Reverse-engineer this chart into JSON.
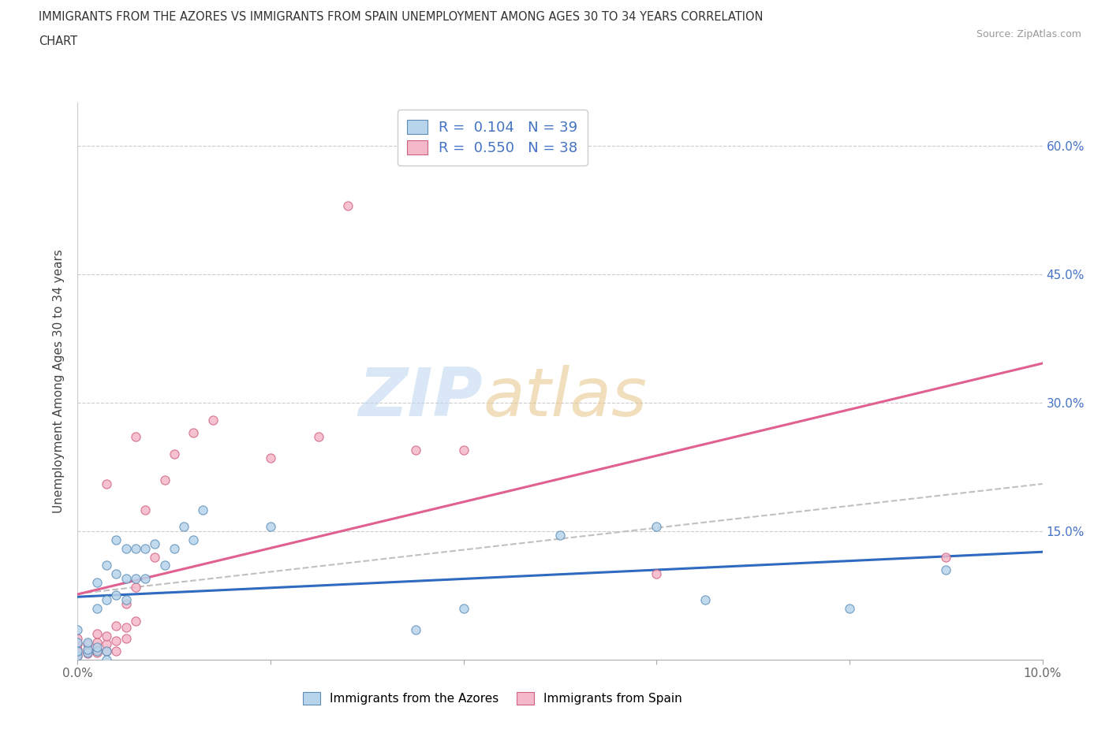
{
  "title_line1": "IMMIGRANTS FROM THE AZORES VS IMMIGRANTS FROM SPAIN UNEMPLOYMENT AMONG AGES 30 TO 34 YEARS CORRELATION",
  "title_line2": "CHART",
  "source": "Source: ZipAtlas.com",
  "ylabel": "Unemployment Among Ages 30 to 34 years",
  "watermark_zip": "ZIP",
  "watermark_atlas": "atlas",
  "xlim": [
    0.0,
    0.1
  ],
  "ylim": [
    0.0,
    0.65
  ],
  "xticks": [
    0.0,
    0.02,
    0.04,
    0.06,
    0.08,
    0.1
  ],
  "xticklabels": [
    "0.0%",
    "",
    "",
    "",
    "",
    "10.0%"
  ],
  "yticks": [
    0.0,
    0.15,
    0.3,
    0.45,
    0.6
  ],
  "yticklabels_left": [
    "",
    "",
    "",
    "",
    ""
  ],
  "yticklabels_right": [
    "",
    "15.0%",
    "30.0%",
    "45.0%",
    "60.0%"
  ],
  "R_azores": 0.104,
  "N_azores": 39,
  "R_spain": 0.55,
  "N_spain": 38,
  "color_azores_fill": "#b8d4ea",
  "color_azores_edge": "#5b8db8",
  "color_spain_fill": "#f5b8c8",
  "color_spain_edge": "#d06080",
  "color_trend_azores": "#2e6abf",
  "color_trend_spain": "#e06090",
  "color_trend_overall": "#c0c0c0",
  "azores_x": [
    0.0,
    0.0,
    0.0,
    0.0,
    0.001,
    0.001,
    0.001,
    0.002,
    0.002,
    0.002,
    0.002,
    0.003,
    0.003,
    0.003,
    0.004,
    0.004,
    0.004,
    0.005,
    0.005,
    0.005,
    0.006,
    0.006,
    0.007,
    0.007,
    0.008,
    0.009,
    0.01,
    0.011,
    0.012,
    0.013,
    0.02,
    0.035,
    0.04,
    0.05,
    0.06,
    0.065,
    0.08,
    0.09,
    0.003
  ],
  "azores_y": [
    0.005,
    0.01,
    0.02,
    0.035,
    0.008,
    0.012,
    0.02,
    0.01,
    0.015,
    0.06,
    0.09,
    0.01,
    0.07,
    0.11,
    0.075,
    0.1,
    0.14,
    0.07,
    0.095,
    0.13,
    0.095,
    0.13,
    0.095,
    0.13,
    0.135,
    0.11,
    0.13,
    0.155,
    0.14,
    0.175,
    0.155,
    0.035,
    0.06,
    0.145,
    0.155,
    0.07,
    0.06,
    0.105,
    0.0
  ],
  "spain_x": [
    0.0,
    0.0,
    0.0,
    0.0,
    0.0,
    0.001,
    0.001,
    0.001,
    0.002,
    0.002,
    0.002,
    0.002,
    0.003,
    0.003,
    0.003,
    0.004,
    0.004,
    0.004,
    0.005,
    0.005,
    0.005,
    0.006,
    0.006,
    0.007,
    0.008,
    0.009,
    0.01,
    0.012,
    0.014,
    0.02,
    0.025,
    0.028,
    0.035,
    0.04,
    0.06,
    0.09,
    0.003,
    0.006
  ],
  "spain_y": [
    0.005,
    0.008,
    0.012,
    0.018,
    0.025,
    0.007,
    0.01,
    0.018,
    0.008,
    0.012,
    0.02,
    0.03,
    0.01,
    0.018,
    0.028,
    0.01,
    0.022,
    0.04,
    0.025,
    0.038,
    0.065,
    0.045,
    0.085,
    0.175,
    0.12,
    0.21,
    0.24,
    0.265,
    0.28,
    0.235,
    0.26,
    0.53,
    0.245,
    0.245,
    0.1,
    0.12,
    0.205,
    0.26
  ],
  "legend_bottom_label1": "Immigrants from the Azores",
  "legend_bottom_label2": "Immigrants from Spain"
}
